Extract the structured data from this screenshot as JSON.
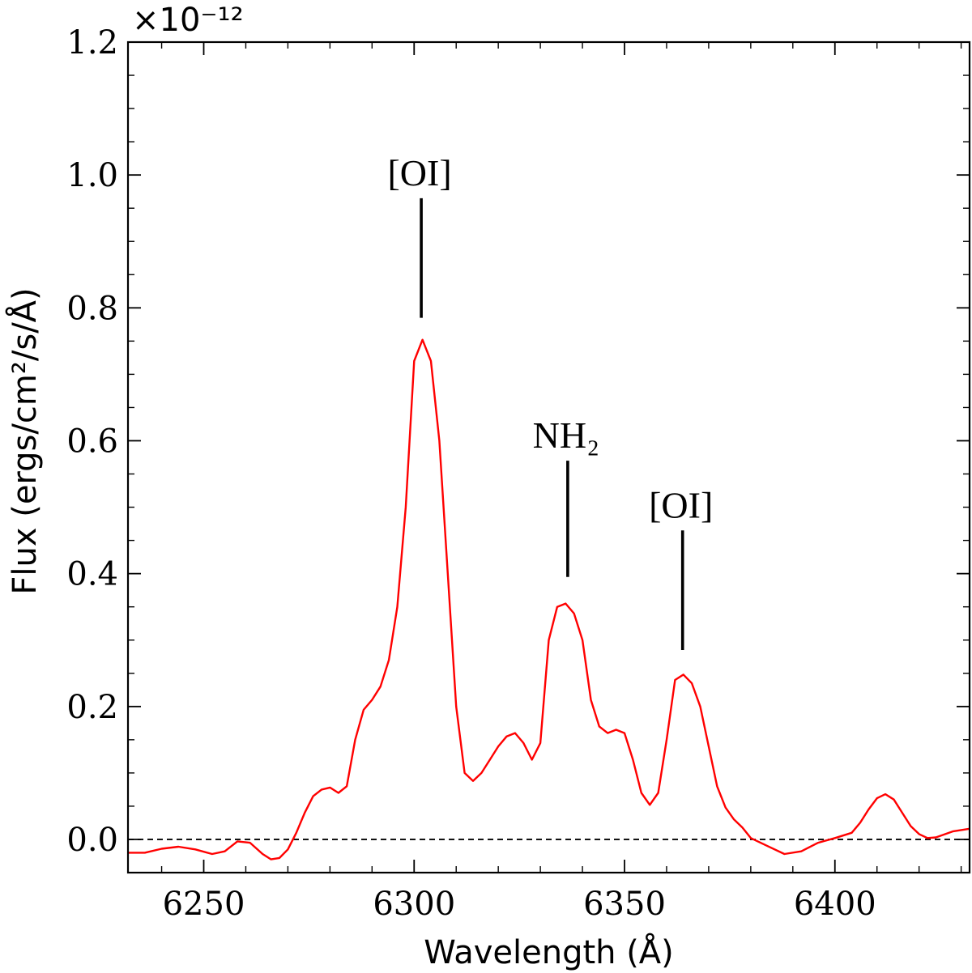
{
  "chart_data": {
    "type": "line",
    "xlabel": "Wavelength (Å)",
    "ylabel": "Flux (ergs/cm²/s/Å)",
    "y_offset_label": "×10⁻¹²",
    "xlim": [
      6232,
      6432
    ],
    "ylim": [
      -0.05,
      1.2
    ],
    "x_ticks": [
      6250,
      6300,
      6350,
      6400
    ],
    "y_ticks": [
      0.0,
      0.2,
      0.4,
      0.6,
      0.8,
      1.0,
      1.2
    ],
    "y_tick_labels": [
      "0.0",
      "0.2",
      "0.4",
      "0.6",
      "0.8",
      "1.0",
      "1.2"
    ],
    "grid": false,
    "zero_line": true,
    "series": [
      {
        "color": "#ff0000",
        "x": [
          6232,
          6236,
          6240,
          6244,
          6248,
          6252,
          6255,
          6258,
          6261,
          6264,
          6266,
          6268,
          6270,
          6272,
          6274,
          6276,
          6278,
          6280,
          6282,
          6284,
          6286,
          6288,
          6290,
          6292,
          6294,
          6296,
          6298,
          6300,
          6302,
          6304,
          6306,
          6308,
          6310,
          6312,
          6314,
          6316,
          6318,
          6320,
          6322,
          6324,
          6326,
          6328,
          6330,
          6332,
          6334,
          6336,
          6338,
          6340,
          6342,
          6344,
          6346,
          6348,
          6350,
          6352,
          6354,
          6356,
          6358,
          6360,
          6362,
          6364,
          6366,
          6368,
          6370,
          6372,
          6374,
          6376,
          6378,
          6380,
          6384,
          6388,
          6392,
          6396,
          6400,
          6404,
          6406,
          6408,
          6410,
          6412,
          6414,
          6416,
          6418,
          6420,
          6422,
          6424,
          6428,
          6432
        ],
        "y": [
          -0.02,
          -0.02,
          -0.014,
          -0.011,
          -0.015,
          -0.022,
          -0.018,
          -0.003,
          -0.005,
          -0.022,
          -0.03,
          -0.028,
          -0.015,
          0.01,
          0.04,
          0.065,
          0.075,
          0.078,
          0.07,
          0.08,
          0.15,
          0.195,
          0.21,
          0.23,
          0.27,
          0.35,
          0.5,
          0.72,
          0.752,
          0.72,
          0.6,
          0.4,
          0.2,
          0.1,
          0.088,
          0.1,
          0.12,
          0.14,
          0.155,
          0.16,
          0.145,
          0.12,
          0.145,
          0.3,
          0.35,
          0.355,
          0.34,
          0.3,
          0.21,
          0.17,
          0.16,
          0.165,
          0.16,
          0.12,
          0.07,
          0.052,
          0.07,
          0.15,
          0.24,
          0.248,
          0.235,
          0.2,
          0.14,
          0.08,
          0.048,
          0.03,
          0.018,
          0.002,
          -0.01,
          -0.022,
          -0.018,
          -0.005,
          0.002,
          0.01,
          0.025,
          0.045,
          0.062,
          0.068,
          0.06,
          0.04,
          0.02,
          0.008,
          0.002,
          0.003,
          0.012,
          0.016
        ]
      }
    ],
    "annotations": [
      {
        "text": "[OI]",
        "x": 6301.7,
        "line_top": 0.965,
        "line_bottom": 0.785
      },
      {
        "text": "NH₂",
        "x": 6336.5,
        "line_top": 0.57,
        "line_bottom": 0.395
      },
      {
        "text": "[OI]",
        "x": 6363.8,
        "line_top": 0.465,
        "line_bottom": 0.285
      }
    ]
  }
}
